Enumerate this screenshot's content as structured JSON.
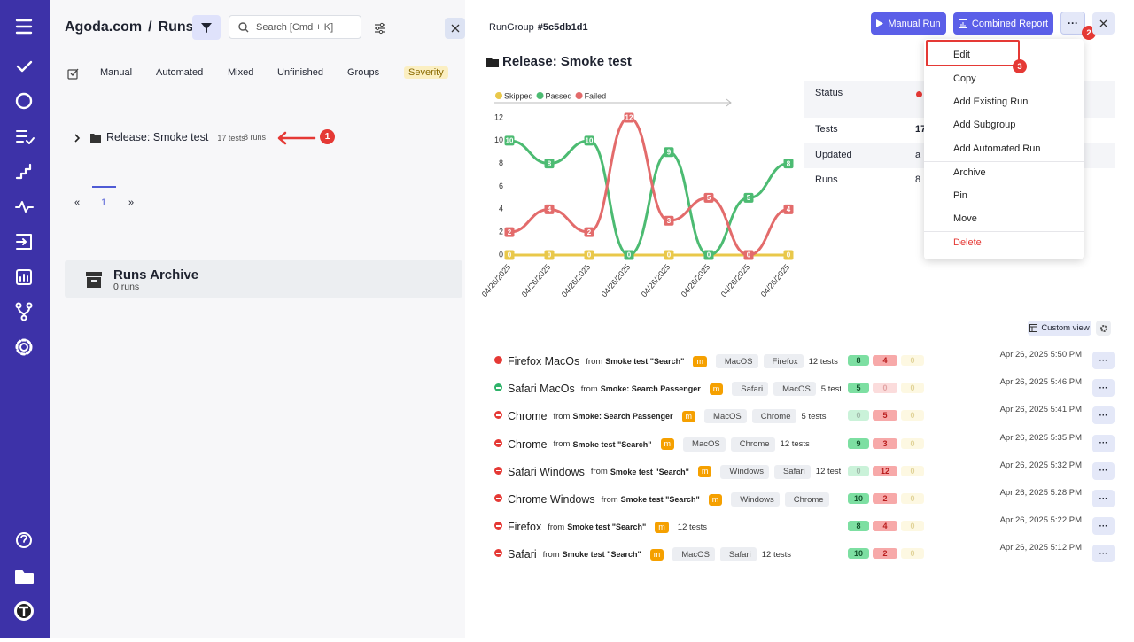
{
  "header": {
    "project": "Agoda.com",
    "separator": "/",
    "title": "Runs",
    "search_placeholder": "Search [Cmd + K]"
  },
  "tabs": [
    "Manual",
    "Automated",
    "Mixed",
    "Unfinished",
    "Groups",
    "Severity"
  ],
  "tree": {
    "group": "Release: Smoke test",
    "tests": "17 tests",
    "runs": "8 runs",
    "annotation": "1"
  },
  "pagination": [
    "«",
    "1",
    "»"
  ],
  "archive": {
    "title": "Runs Archive",
    "count": "0 runs"
  },
  "detail": {
    "label": "RunGroup",
    "id": "#5c5db1d1",
    "buttons": [
      "Manual Run",
      "Combined Report"
    ],
    "more_annotation": "2",
    "heading": "Release: Smoke test",
    "info": [
      {
        "label": "Status",
        "value": ""
      },
      {
        "label": "Tests",
        "value": "17"
      },
      {
        "label": "Updated",
        "value": "a"
      },
      {
        "label": "Runs",
        "value": "8"
      }
    ],
    "custom_view": "Custom view"
  },
  "chart_data": {
    "type": "line",
    "categories": [
      "04/26/2025",
      "04/26/2025",
      "04/26/2025",
      "04/26/2025",
      "04/26/2025",
      "04/26/2025",
      "04/26/2025",
      "04/26/2025"
    ],
    "series": [
      {
        "name": "Skipped",
        "color": "#e9c84a",
        "values": [
          0,
          0,
          0,
          0,
          0,
          0,
          0,
          0
        ]
      },
      {
        "name": "Passed",
        "color": "#4cbb72",
        "values": [
          10,
          8,
          10,
          0,
          9,
          0,
          5,
          8
        ]
      },
      {
        "name": "Failed",
        "color": "#e36b6b",
        "values": [
          2,
          4,
          2,
          12,
          3,
          5,
          0,
          4
        ]
      }
    ],
    "ylim": [
      0,
      12
    ],
    "yticks": [
      0,
      2,
      4,
      6,
      8,
      10,
      12
    ],
    "grid": false
  },
  "runs": [
    {
      "status": "failed",
      "name": "Firefox MacOs",
      "from": "from",
      "suite": "Smoke test \"Search\"",
      "badge": "m",
      "tags": [
        "MacOS",
        "Firefox"
      ],
      "tests": "12 tests",
      "passed": 8,
      "failed": 4,
      "skipped": 0,
      "date": "Apr 26, 2025 5:50 PM"
    },
    {
      "status": "passed",
      "name": "Safari MacOs",
      "from": "from",
      "suite": "Smoke: Search Passenger",
      "badge": "m",
      "tags": [
        "Safari",
        "MacOS"
      ],
      "tests": "5 tests",
      "passed": 5,
      "failed": 0,
      "skipped": 0,
      "date": "Apr 26, 2025 5:46 PM"
    },
    {
      "status": "failed",
      "name": "Chrome",
      "from": "from",
      "suite": "Smoke: Search Passenger",
      "badge": "m",
      "tags": [
        "MacOS",
        "Chrome"
      ],
      "tests": "5 tests",
      "passed": 0,
      "failed": 5,
      "skipped": 0,
      "date": "Apr 26, 2025 5:41 PM"
    },
    {
      "status": "failed",
      "name": "Chrome",
      "from": "from",
      "suite": "Smoke test \"Search\"",
      "badge": "m",
      "tags": [
        "MacOS",
        "Chrome"
      ],
      "tests": "12 tests",
      "passed": 9,
      "failed": 3,
      "skipped": 0,
      "date": "Apr 26, 2025 5:35 PM"
    },
    {
      "status": "failed",
      "name": "Safari Windows",
      "from": "from",
      "suite": "Smoke test \"Search\"",
      "badge": "m",
      "tags": [
        "Windows",
        "Safari"
      ],
      "tests": "12 tests",
      "passed": 0,
      "failed": 12,
      "skipped": 0,
      "date": "Apr 26, 2025 5:32 PM"
    },
    {
      "status": "failed",
      "name": "Chrome Windows",
      "from": "from",
      "suite": "Smoke test \"Search\"",
      "badge": "m",
      "tags": [
        "Windows",
        "Chrome"
      ],
      "passed": 10,
      "failed": 2,
      "skipped": 0,
      "date": "Apr 26, 2025 5:28 PM"
    },
    {
      "status": "failed",
      "name": "Firefox",
      "from": "from",
      "suite": "Smoke test \"Search\"",
      "badge": "m",
      "tags": [],
      "tests": "12 tests",
      "passed": 8,
      "failed": 4,
      "skipped": 0,
      "date": "Apr 26, 2025 5:22 PM"
    },
    {
      "status": "failed",
      "name": "Safari",
      "from": "from",
      "suite": "Smoke test \"Search\"",
      "badge": "m",
      "tags": [
        "MacOS",
        "Safari"
      ],
      "tests": "12 tests",
      "passed": 10,
      "failed": 2,
      "skipped": 0,
      "date": "Apr 26, 2025 5:12 PM"
    }
  ],
  "menu": {
    "items": [
      "Edit",
      "Copy",
      "Add Existing Run",
      "Add Subgroup",
      "Add Automated Run",
      "Archive",
      "Pin",
      "Move",
      "Delete"
    ],
    "annotation": "3"
  }
}
